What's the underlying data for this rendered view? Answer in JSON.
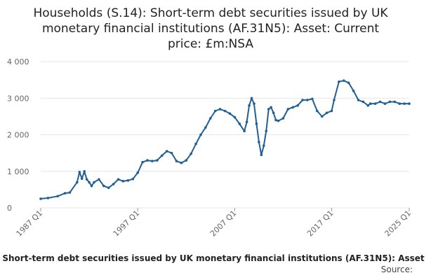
{
  "title_lines": [
    "Households (S.14): Short-term debt securities issued by UK",
    "monetary financial institutions (AF.31N5): Asset: Current",
    "price: £m:NSA"
  ],
  "series_caption": "Short-term debt securities issued by UK monetary financial institutions (AF.31N5): Asset",
  "source_label": "Source:",
  "colors": {
    "line": "#206095",
    "grid": "#e6e6e6",
    "tick": "#666666"
  },
  "chart_data": {
    "type": "line",
    "title": "Households (S.14): Short-term debt securities issued by UK monetary financial institutions (AF.31N5): Asset: Current price: £m:NSA",
    "xlabel": "",
    "ylabel": "",
    "ylim": [
      0,
      4000
    ],
    "yticks": [
      0,
      1000,
      2000,
      3000,
      4000
    ],
    "ytick_labels": [
      "0",
      "1 000",
      "2 000",
      "3 000",
      "4 000"
    ],
    "xlim": [
      "1987 Q1",
      "2025 Q1"
    ],
    "xticks": [
      "1987 Q1",
      "1997 Q1",
      "2007 Q1",
      "2017 Q1",
      "2025 Q1"
    ],
    "grid": true,
    "legend": "none",
    "series": [
      {
        "x": [
          "1987 Q1",
          "1987 Q4",
          "1988 Q4",
          "1989 Q3",
          "1990 Q1",
          "1990 Q4",
          "1991 Q1",
          "1991 Q2",
          "1991 Q3",
          "1991 Q4",
          "1992 Q1",
          "1992 Q2",
          "1992 Q3",
          "1993 Q1",
          "1993 Q3",
          "1994 Q1",
          "1994 Q3",
          "1995 Q1",
          "1995 Q3",
          "1996 Q1",
          "1996 Q3",
          "1997 Q1",
          "1997 Q3",
          "1998 Q1",
          "1998 Q3",
          "1999 Q1",
          "1999 Q3",
          "2000 Q1",
          "2000 Q3",
          "2001 Q1",
          "2001 Q3",
          "2002 Q1",
          "2002 Q3",
          "2003 Q1",
          "2003 Q3",
          "2004 Q1",
          "2004 Q3",
          "2005 Q1",
          "2005 Q3",
          "2006 Q1",
          "2006 Q3",
          "2007 Q1",
          "2007 Q3",
          "2008 Q1",
          "2008 Q2",
          "2008 Q3",
          "2008 Q4",
          "2009 Q1",
          "2009 Q2",
          "2009 Q3",
          "2009 Q4",
          "2010 Q1",
          "2010 Q2",
          "2010 Q3",
          "2010 Q4",
          "2011 Q1",
          "2011 Q2",
          "2011 Q3",
          "2012 Q1",
          "2012 Q3",
          "2013 Q1",
          "2013 Q3",
          "2014 Q1",
          "2014 Q3",
          "2015 Q1",
          "2015 Q3",
          "2016 Q1",
          "2016 Q3",
          "2017 Q1",
          "2017 Q2",
          "2017 Q4",
          "2018 Q2",
          "2018 Q4",
          "2019 Q2",
          "2019 Q4",
          "2020 Q2",
          "2020 Q4",
          "2021 Q1",
          "2021 Q3",
          "2022 Q1",
          "2022 Q3",
          "2023 Q1",
          "2023 Q3",
          "2024 Q1",
          "2024 Q3",
          "2025 Q1"
        ],
        "values": [
          250,
          270,
          320,
          400,
          420,
          700,
          980,
          800,
          1000,
          780,
          700,
          600,
          700,
          780,
          600,
          550,
          650,
          780,
          730,
          750,
          790,
          960,
          1250,
          1300,
          1280,
          1300,
          1430,
          1550,
          1500,
          1280,
          1230,
          1300,
          1480,
          1750,
          2000,
          2200,
          2450,
          2650,
          2700,
          2650,
          2580,
          2480,
          2300,
          2100,
          2350,
          2800,
          3000,
          2850,
          2300,
          1800,
          1450,
          1700,
          2100,
          2700,
          2750,
          2600,
          2400,
          2380,
          2450,
          2700,
          2750,
          2800,
          2950,
          2950,
          2980,
          2650,
          2500,
          2600,
          2650,
          2950,
          3450,
          3480,
          3420,
          3200,
          2950,
          2900,
          2800,
          2850,
          2850,
          2900,
          2850,
          2900,
          2900,
          2850,
          2850,
          2850
        ]
      }
    ]
  }
}
